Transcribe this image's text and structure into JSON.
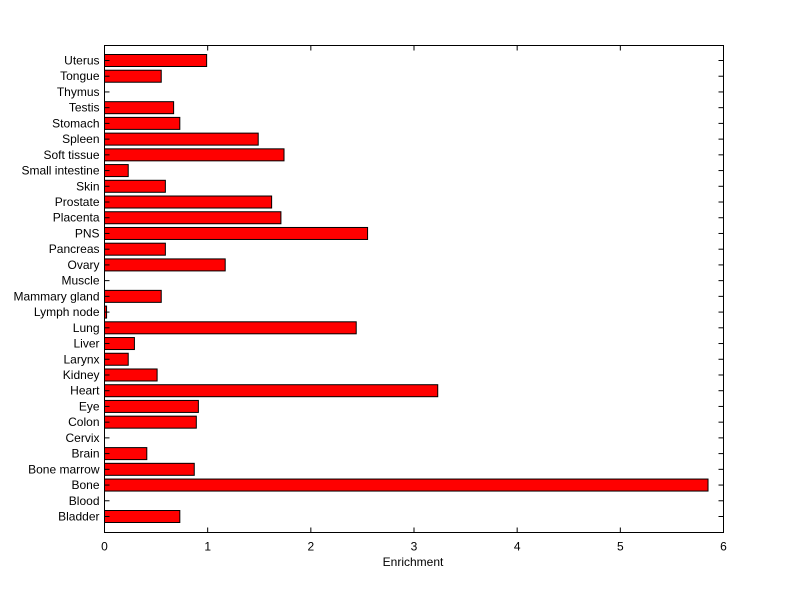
{
  "chart_data": {
    "type": "bar",
    "orientation": "horizontal",
    "xlabel": "Enrichment",
    "ylabel": "",
    "title": "",
    "xlim": [
      0,
      6
    ],
    "xticks": [
      0,
      1,
      2,
      3,
      4,
      5,
      6
    ],
    "grid": false,
    "legend": "none",
    "bar_color": "#ff0000",
    "bar_edge_color": "#000000",
    "categories": [
      "Bladder",
      "Blood",
      "Bone",
      "Bone marrow",
      "Brain",
      "Cervix",
      "Colon",
      "Eye",
      "Heart",
      "Kidney",
      "Larynx",
      "Liver",
      "Lung",
      "Lymph node",
      "Mammary gland",
      "Muscle",
      "Ovary",
      "Pancreas",
      "PNS",
      "Placenta",
      "Prostate",
      "Skin",
      "Small intestine",
      "Soft tissue",
      "Spleen",
      "Stomach",
      "Testis",
      "Thymus",
      "Tongue",
      "Uterus"
    ],
    "values": [
      0.73,
      0,
      5.85,
      0.87,
      0.41,
      0,
      0.89,
      0.91,
      3.23,
      0.51,
      0.23,
      0.29,
      2.44,
      0.02,
      0.55,
      0,
      1.17,
      0.59,
      2.55,
      1.71,
      1.62,
      0.59,
      0.23,
      1.74,
      1.49,
      0.73,
      0.67,
      0,
      0.55,
      0.99
    ]
  }
}
